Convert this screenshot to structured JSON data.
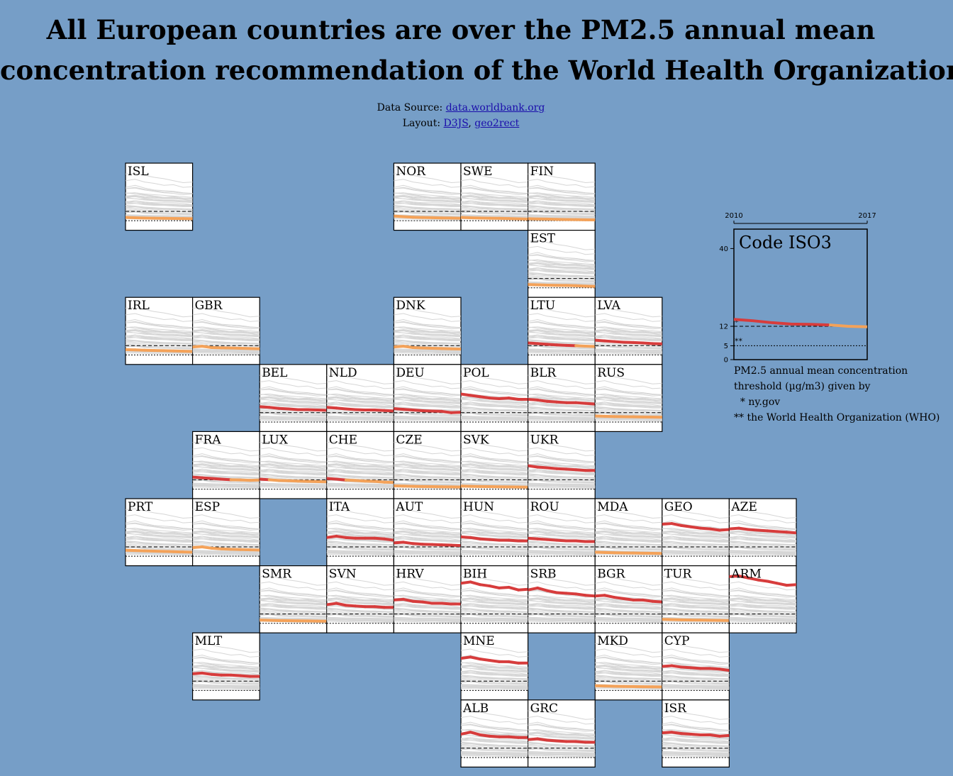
{
  "title": {
    "line1": "All European countries are over the PM2.5 annual mean",
    "line2": "concentration recommendation of the World Health Organization"
  },
  "sources": {
    "data_label": "Data Source:",
    "data_link": "data.worldbank.org",
    "layout_label": "Layout:",
    "layout_link1": "D3JS",
    "layout_sep": ",",
    "layout_link2": "geo2rect"
  },
  "legend": {
    "x_start": "2010",
    "x_end": "2017",
    "y_ticks": [
      "40",
      "12",
      "5",
      "0"
    ],
    "code_label": "Code ISO3",
    "marker1": "*",
    "marker2": "**",
    "text_line1": "PM2.5 annual mean concentration",
    "text_line2": "threshold (µg/m3) given by",
    "text_line3": "  * ny.gov",
    "text_line4": "** the World Health Organization (WHO)"
  },
  "colors": {
    "background": "#769ec7",
    "above_12": "#d73c3c",
    "below_12": "#f4a259",
    "context_lines": "#d6d6d6"
  },
  "chart_data": {
    "type": "line",
    "x": [
      2010,
      2011,
      2012,
      2013,
      2014,
      2015,
      2016,
      2017
    ],
    "ylim": [
      0,
      40
    ],
    "thresholds": [
      {
        "value": 12,
        "marker": "*",
        "source": "ny.gov"
      },
      {
        "value": 5,
        "marker": "**",
        "source": "the World Health Organization (WHO)"
      }
    ],
    "series": [
      {
        "name": "ISL",
        "values": [
          7.5,
          7.2,
          7.0,
          6.9,
          6.8,
          6.7,
          6.6,
          6.5
        ]
      },
      {
        "name": "NOR",
        "values": [
          8.5,
          8.0,
          7.6,
          7.4,
          7.3,
          7.1,
          7.0,
          6.8
        ]
      },
      {
        "name": "SWE",
        "values": [
          7.5,
          7.2,
          7.0,
          6.9,
          6.8,
          6.6,
          6.4,
          6.2
        ]
      },
      {
        "name": "FIN",
        "values": [
          6.5,
          6.3,
          6.2,
          6.0,
          5.9,
          5.8,
          5.7,
          5.6
        ]
      },
      {
        "name": "EST",
        "values": [
          7.5,
          7.3,
          7.0,
          6.9,
          6.8,
          6.6,
          6.3,
          6.1
        ]
      },
      {
        "name": "IRL",
        "values": [
          9.0,
          8.8,
          8.5,
          8.3,
          8.2,
          8.0,
          7.8,
          7.6
        ]
      },
      {
        "name": "GBR",
        "values": [
          11.0,
          11.5,
          10.5,
          10.3,
          10.2,
          10.0,
          9.8,
          9.6
        ]
      },
      {
        "name": "DNK",
        "values": [
          11.0,
          11.5,
          10.5,
          10.2,
          10.0,
          9.8,
          9.6,
          9.4
        ]
      },
      {
        "name": "LTU",
        "values": [
          14.0,
          13.5,
          13.0,
          12.5,
          12.2,
          11.9,
          11.6,
          11.3
        ]
      },
      {
        "name": "LVA",
        "values": [
          16.0,
          15.5,
          15.0,
          14.5,
          14.3,
          14.0,
          13.5,
          13.3
        ]
      },
      {
        "name": "BEL",
        "values": [
          16.5,
          16.0,
          15.2,
          14.8,
          14.3,
          14.3,
          14.0,
          13.8
        ]
      },
      {
        "name": "NLD",
        "values": [
          16.0,
          15.5,
          14.8,
          14.3,
          14.0,
          14.0,
          13.6,
          13.3
        ]
      },
      {
        "name": "DEU",
        "values": [
          15.0,
          14.5,
          14.0,
          13.5,
          13.2,
          13.0,
          12.0,
          12.3
        ]
      },
      {
        "name": "POL",
        "values": [
          26.0,
          25.0,
          24.0,
          23.0,
          22.5,
          23.0,
          22.0,
          22.0
        ]
      },
      {
        "name": "BLR",
        "values": [
          22.0,
          21.5,
          20.5,
          20.0,
          19.5,
          19.5,
          19.0,
          18.5
        ]
      },
      {
        "name": "RUS",
        "values": [
          9.5,
          9.3,
          9.1,
          9.0,
          8.9,
          8.8,
          8.7,
          8.6
        ]
      },
      {
        "name": "FRA",
        "values": [
          14.0,
          13.5,
          13.0,
          12.5,
          12.0,
          11.9,
          11.6,
          11.8
        ]
      },
      {
        "name": "LUX",
        "values": [
          12.5,
          12.0,
          11.5,
          11.3,
          11.0,
          10.8,
          10.6,
          10.5
        ]
      },
      {
        "name": "CHE",
        "values": [
          13.0,
          12.5,
          11.8,
          11.5,
          11.0,
          10.8,
          10.2,
          10.0
        ]
      },
      {
        "name": "CZE",
        "values": [
          7.5,
          7.3,
          7.1,
          7.0,
          6.9,
          6.8,
          6.7,
          6.6
        ]
      },
      {
        "name": "SVK",
        "values": [
          7.3,
          7.1,
          7.0,
          6.9,
          6.8,
          6.7,
          6.6,
          6.5
        ]
      },
      {
        "name": "UKR",
        "values": [
          22.5,
          21.5,
          21.0,
          20.3,
          20.0,
          19.5,
          19.0,
          19.0
        ]
      },
      {
        "name": "PRT",
        "values": [
          9.5,
          9.3,
          9.0,
          8.8,
          8.6,
          8.4,
          8.2,
          8.0
        ]
      },
      {
        "name": "ESP",
        "values": [
          11.5,
          12.0,
          11.0,
          10.5,
          10.2,
          10.0,
          9.8,
          9.6
        ]
      },
      {
        "name": "ITA",
        "values": [
          19.0,
          20.0,
          19.0,
          18.5,
          18.5,
          18.5,
          18.0,
          17.0
        ]
      },
      {
        "name": "AUT",
        "values": [
          15.0,
          15.5,
          14.5,
          14.0,
          13.8,
          13.5,
          13.3,
          13.0
        ]
      },
      {
        "name": "HUN",
        "values": [
          19.5,
          19.0,
          18.0,
          17.5,
          17.0,
          17.0,
          16.5,
          16.5
        ]
      },
      {
        "name": "ROU",
        "values": [
          18.5,
          18.0,
          17.5,
          17.0,
          16.5,
          16.5,
          16.0,
          16.0
        ]
      },
      {
        "name": "MDA",
        "values": [
          8.0,
          7.8,
          7.6,
          7.5,
          7.4,
          7.3,
          7.2,
          7.1
        ]
      },
      {
        "name": "GEO",
        "values": [
          29.0,
          29.5,
          28.0,
          27.0,
          26.0,
          25.5,
          24.5,
          25.0
        ]
      },
      {
        "name": "AZE",
        "values": [
          25.5,
          26.0,
          25.0,
          24.5,
          24.0,
          23.5,
          23.0,
          22.5
        ]
      },
      {
        "name": "SMR",
        "values": [
          7.5,
          7.3,
          7.1,
          7.0,
          6.9,
          6.8,
          6.7,
          6.6
        ]
      },
      {
        "name": "SVN",
        "values": [
          19.0,
          20.0,
          18.5,
          18.0,
          17.5,
          17.5,
          17.0,
          17.0
        ]
      },
      {
        "name": "HRV",
        "values": [
          22.5,
          23.0,
          21.5,
          21.0,
          20.0,
          20.0,
          19.5,
          19.5
        ]
      },
      {
        "name": "BIH",
        "values": [
          35.0,
          36.0,
          34.0,
          33.0,
          31.5,
          32.0,
          30.0,
          30.5
        ]
      },
      {
        "name": "SRB",
        "values": [
          30.0,
          31.5,
          29.5,
          28.0,
          27.5,
          27.0,
          26.0,
          25.5
        ]
      },
      {
        "name": "BGR",
        "values": [
          25.5,
          26.0,
          24.5,
          23.5,
          22.5,
          22.5,
          21.5,
          21.0
        ]
      },
      {
        "name": "TUR",
        "values": [
          8.0,
          7.8,
          7.6,
          7.5,
          7.4,
          7.3,
          7.2,
          7.1
        ]
      },
      {
        "name": "ARM",
        "values": [
          40.0,
          40.5,
          39.0,
          37.5,
          36.5,
          35.0,
          33.5,
          34.0
        ]
      },
      {
        "name": "MLT",
        "values": [
          17.5,
          18.0,
          17.0,
          16.5,
          16.5,
          16.0,
          15.5,
          15.5
        ]
      },
      {
        "name": "MNE",
        "values": [
          29.0,
          30.0,
          28.5,
          27.5,
          26.5,
          26.5,
          25.5,
          25.5
        ]
      },
      {
        "name": "MKD",
        "values": [
          8.5,
          8.3,
          8.1,
          8.0,
          7.9,
          7.8,
          7.7,
          7.6
        ]
      },
      {
        "name": "CYP",
        "values": [
          23.0,
          23.5,
          22.5,
          22.0,
          21.5,
          21.5,
          21.0,
          20.0
        ]
      },
      {
        "name": "ALB",
        "values": [
          22.5,
          24.0,
          22.0,
          21.0,
          20.5,
          20.5,
          20.0,
          20.0
        ]
      },
      {
        "name": "GRC",
        "values": [
          18.5,
          19.0,
          18.0,
          17.5,
          17.0,
          17.0,
          16.5,
          16.5
        ]
      },
      {
        "name": "ISR",
        "values": [
          23.5,
          24.0,
          23.0,
          22.5,
          22.0,
          22.0,
          21.0,
          21.5
        ]
      }
    ]
  }
}
